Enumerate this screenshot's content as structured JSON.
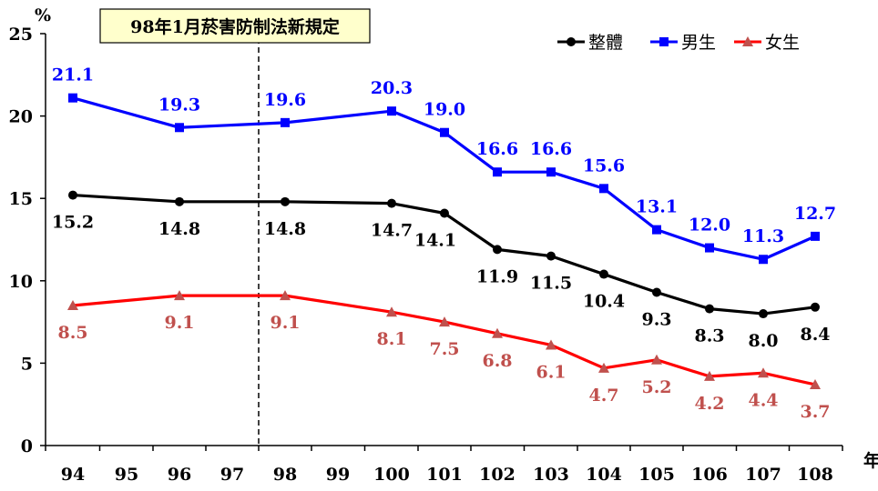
{
  "chart_data": {
    "type": "line",
    "ylabel": "%",
    "xlabel": "年",
    "ylim": [
      0,
      25
    ],
    "yticks": [
      "0",
      "5",
      "10",
      "15",
      "20",
      "25"
    ],
    "categories": [
      "94",
      "95",
      "96",
      "97",
      "98",
      "99",
      "100",
      "101",
      "102",
      "103",
      "104",
      "105",
      "106",
      "107",
      "108"
    ],
    "annotation": "98年1月菸害防制法新規定",
    "legend_position": "top-right",
    "grid": false,
    "series": [
      {
        "name": "整體",
        "color": "#000000",
        "marker": "circle",
        "x": [
          "94",
          "96",
          "98",
          "100",
          "101",
          "102",
          "103",
          "104",
          "105",
          "106",
          "107",
          "108"
        ],
        "values": [
          15.2,
          14.8,
          14.8,
          14.7,
          14.1,
          11.9,
          11.5,
          10.4,
          9.3,
          8.3,
          8.0,
          8.4
        ],
        "labels": [
          "15.2",
          "14.8",
          "14.8",
          "14.7",
          "14.1",
          "11.9",
          "11.5",
          "10.4",
          "9.3",
          "8.3",
          "8.0",
          "8.4"
        ]
      },
      {
        "name": "男生",
        "color": "#0000ff",
        "marker": "square",
        "x": [
          "94",
          "96",
          "98",
          "100",
          "101",
          "102",
          "103",
          "104",
          "105",
          "106",
          "107",
          "108"
        ],
        "values": [
          21.1,
          19.3,
          19.6,
          20.3,
          19.0,
          16.6,
          16.6,
          15.6,
          13.1,
          12.0,
          11.3,
          12.7
        ],
        "labels": [
          "21.1",
          "19.3",
          "19.6",
          "20.3",
          "19.0",
          "16.6",
          "16.6",
          "15.6",
          "13.1",
          "12.0",
          "11.3",
          "12.7"
        ]
      },
      {
        "name": "女生",
        "color": "#ff0000",
        "label_color": "#c0504d",
        "marker": "triangle",
        "x": [
          "94",
          "96",
          "98",
          "100",
          "101",
          "102",
          "103",
          "104",
          "105",
          "106",
          "107",
          "108"
        ],
        "values": [
          8.5,
          9.1,
          9.1,
          8.1,
          7.5,
          6.8,
          6.1,
          4.7,
          5.2,
          4.2,
          4.4,
          3.7
        ],
        "labels": [
          "8.5",
          "9.1",
          "9.1",
          "8.1",
          "7.5",
          "6.8",
          "6.1",
          "4.7",
          "5.2",
          "4.2",
          "4.4",
          "3.7"
        ]
      }
    ]
  }
}
